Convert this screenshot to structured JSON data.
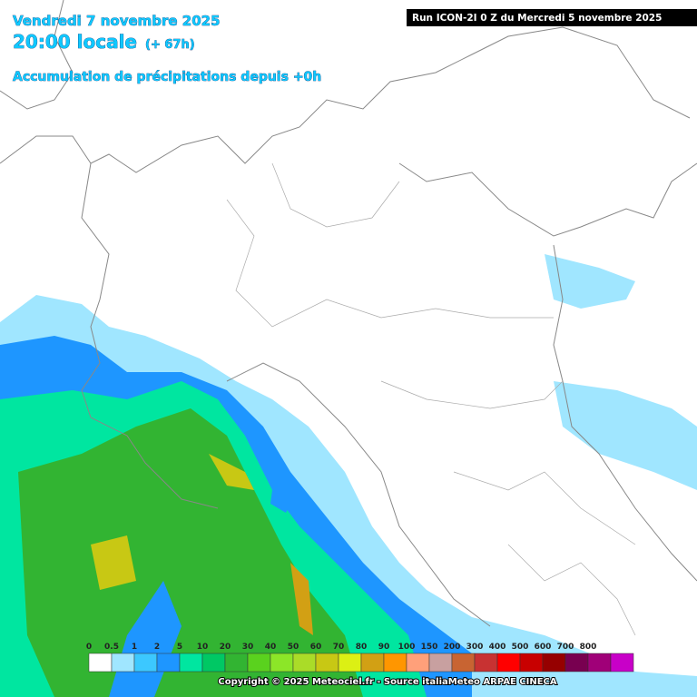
{
  "header": {
    "date": "Vendredi 7 novembre 2025",
    "time": "20:00 locale",
    "lead": "(+ 67h)",
    "product": "Accumulation de précipitations depuis +0h",
    "run": "Run ICON-2I 0 Z du Mercredi 5 novembre 2025"
  },
  "legend": {
    "items": [
      {
        "label": "0",
        "color": "#ffffff"
      },
      {
        "label": "0.5",
        "color": "#a0e6ff"
      },
      {
        "label": "1",
        "color": "#3cc8ff"
      },
      {
        "label": "2",
        "color": "#1e96ff"
      },
      {
        "label": "5",
        "color": "#00e6a0"
      },
      {
        "label": "10",
        "color": "#00c864"
      },
      {
        "label": "20",
        "color": "#32b432"
      },
      {
        "label": "30",
        "color": "#5ad21e"
      },
      {
        "label": "40",
        "color": "#8ce628"
      },
      {
        "label": "50",
        "color": "#aadc28"
      },
      {
        "label": "60",
        "color": "#c8c814"
      },
      {
        "label": "70",
        "color": "#dcf014"
      },
      {
        "label": "80",
        "color": "#d2a014"
      },
      {
        "label": "90",
        "color": "#ff9600"
      },
      {
        "label": "100",
        "color": "#ffa07a"
      },
      {
        "label": "150",
        "color": "#c8a0a0"
      },
      {
        "label": "200",
        "color": "#c86432"
      },
      {
        "label": "300",
        "color": "#c83232"
      },
      {
        "label": "400",
        "color": "#ff0000"
      },
      {
        "label": "500",
        "color": "#c80000"
      },
      {
        "label": "600",
        "color": "#960000"
      },
      {
        "label": "700",
        "color": "#780050"
      },
      {
        "label": "800",
        "color": "#a00078"
      }
    ],
    "last_color": "#c800c8"
  },
  "footer": {
    "copyright": "Copyright © 2025 Meteociel.fr - Source italiaMeteo ARPAE CINECA"
  }
}
